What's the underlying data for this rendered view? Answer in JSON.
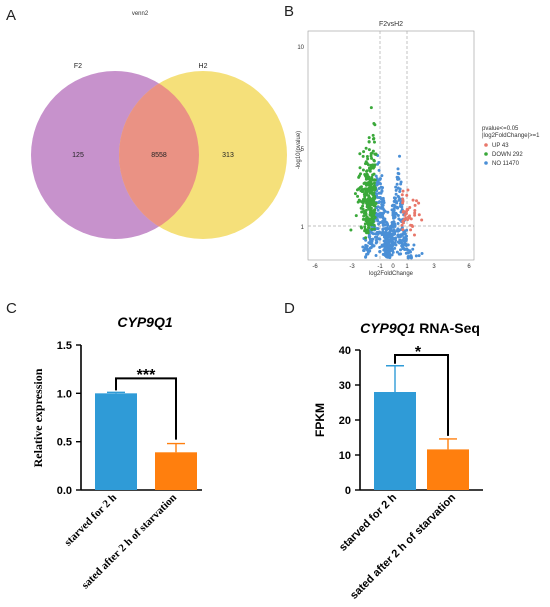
{
  "panels": {
    "A": "A",
    "B": "B",
    "C": "C",
    "D": "D"
  },
  "chart_data": [
    {
      "type": "venn",
      "title": "venn2",
      "sets": [
        "F2",
        "H2"
      ],
      "values": {
        "F2_only": 125,
        "intersection": 8558,
        "H2_only": 313
      },
      "colors": {
        "F2": "#c792cc",
        "H2": "#f5e07a",
        "overlap": "#ea9284"
      }
    },
    {
      "type": "scatter",
      "title": "F2vsH2",
      "xlabel": "log2FoldChange",
      "ylabel": "-log10(pvalue)",
      "xticks": [
        "-6",
        "-3",
        "-1",
        "0",
        "1",
        "3",
        "6"
      ],
      "yticks": [
        "1",
        "5",
        "10"
      ],
      "legend_title": "pvalue<=0.05\n|log2FoldChange|>=1",
      "legend_placement": "right",
      "series": [
        {
          "name": "UP 43",
          "count": 43,
          "color": "#e8776a"
        },
        {
          "name": "DOWN 292",
          "count": 292,
          "color": "#3aa83a"
        },
        {
          "name": "NO 11470",
          "count": 11470,
          "color": "#4a8fd6"
        }
      ]
    },
    {
      "type": "bar",
      "title": "CYP9Q1",
      "categories": [
        "starved for 2 h",
        "sated after 2 h of starvation"
      ],
      "values": [
        1.0,
        0.39
      ],
      "errors": [
        0.01,
        0.09
      ],
      "colors": [
        "#2f9bd7",
        "#ff7f0e"
      ],
      "ylabel": "Relative expression",
      "ylim": [
        0,
        1.5
      ],
      "yticks": [
        "0.0",
        "0.5",
        "1.0",
        "1.5"
      ],
      "significance": "***"
    },
    {
      "type": "bar",
      "title_gene": "CYP9Q1",
      "title_rest": " RNA-Seq",
      "categories": [
        "starved for 2 h",
        "sated after 2 h of starvation"
      ],
      "values": [
        28,
        11.6
      ],
      "errors": [
        7.5,
        3
      ],
      "colors": [
        "#2f9bd7",
        "#ff7f0e"
      ],
      "ylabel": "FPKM",
      "ylim": [
        0,
        40
      ],
      "yticks": [
        "0",
        "10",
        "20",
        "30",
        "40"
      ],
      "significance": "*"
    }
  ]
}
